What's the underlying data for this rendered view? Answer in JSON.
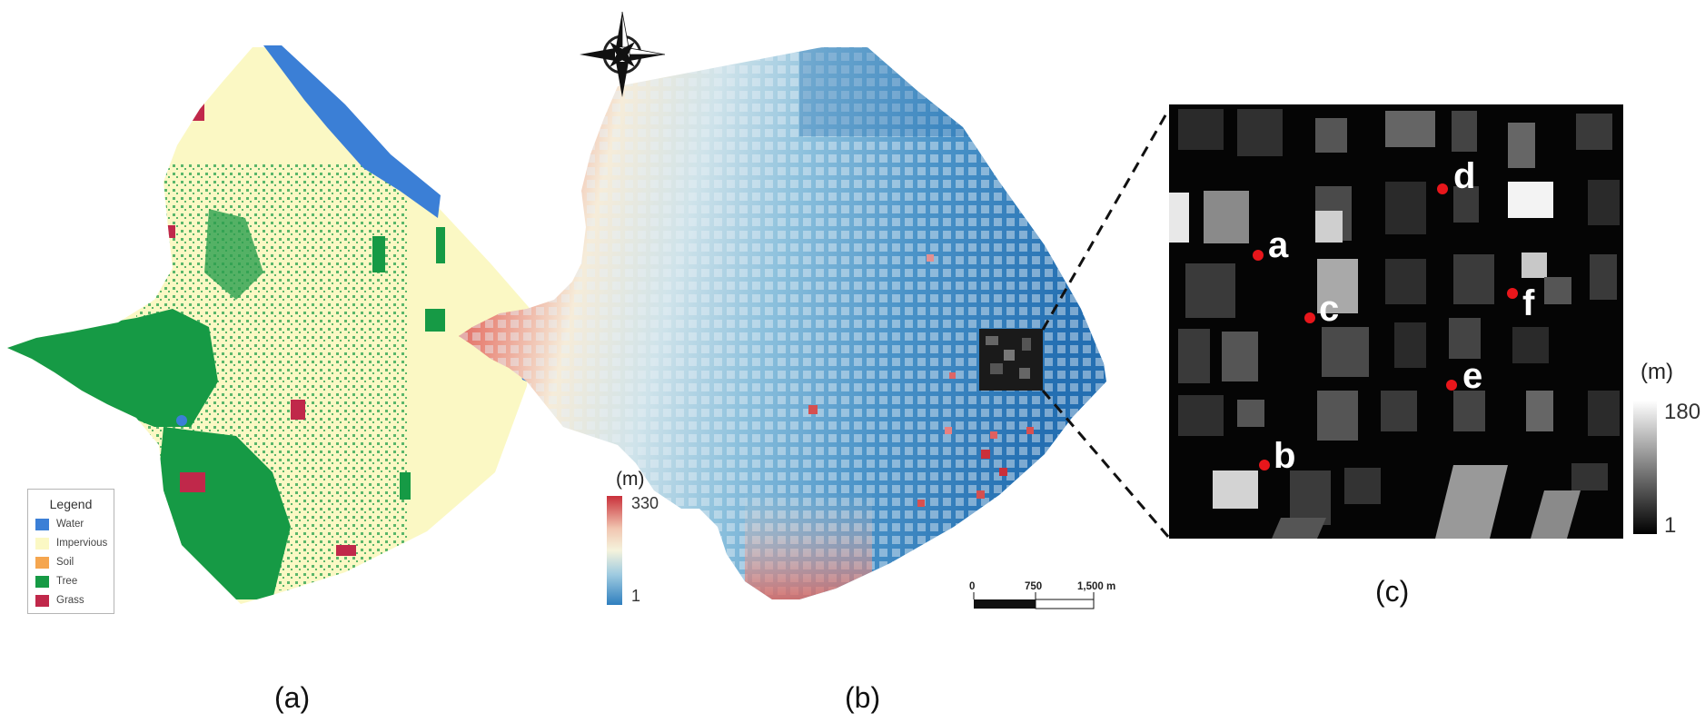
{
  "panels": {
    "a": {
      "label": "(a)",
      "legend": {
        "title": "Legend",
        "items": [
          {
            "label": "Water",
            "color": "#3b7fd6"
          },
          {
            "label": "Impervious",
            "color": "#fbf8c4"
          },
          {
            "label": "Soil",
            "color": "#f5a64f"
          },
          {
            "label": "Tree",
            "color": "#169a45"
          },
          {
            "label": "Grass",
            "color": "#c0284a"
          }
        ]
      }
    },
    "b": {
      "label": "(b)",
      "colorbar": {
        "unit": "(m)",
        "max": "330",
        "min": "1",
        "colors": [
          "#c9303a",
          "#f1c6b1",
          "#f5f3dc",
          "#9fcbe0",
          "#2f7fbf"
        ]
      },
      "scale_bar": {
        "labels": [
          "0",
          "750",
          "1,500 m"
        ]
      }
    },
    "c": {
      "label": "(c)",
      "colorbar": {
        "unit": "(m)",
        "max": "180",
        "min": "1"
      },
      "points": [
        "a",
        "b",
        "c",
        "d",
        "e",
        "f"
      ],
      "point_color": "#e8161b"
    }
  },
  "icons": {
    "north_arrow": "compass-rose-icon"
  }
}
